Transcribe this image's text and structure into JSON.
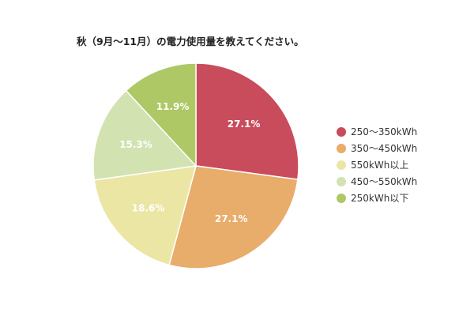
{
  "chart_data": {
    "type": "pie",
    "title": "秋（9月〜11月）の電力使用量を教えてください。",
    "slices": [
      {
        "label": "250〜350kWh",
        "value": 27.1,
        "value_label": "27.1%",
        "color": "#c94c5c"
      },
      {
        "label": "350〜450kWh",
        "value": 27.1,
        "value_label": "27.1%",
        "color": "#e8ac6b"
      },
      {
        "label": "550kWh以上",
        "value": 18.6,
        "value_label": "18.6%",
        "color": "#ebe6a4"
      },
      {
        "label": "450〜550kWh",
        "value": 15.3,
        "value_label": "15.3%",
        "color": "#d3e2b1"
      },
      {
        "label": "250kWh以下",
        "value": 11.9,
        "value_label": "11.9%",
        "color": "#aec866"
      }
    ],
    "legend_position": "right"
  }
}
